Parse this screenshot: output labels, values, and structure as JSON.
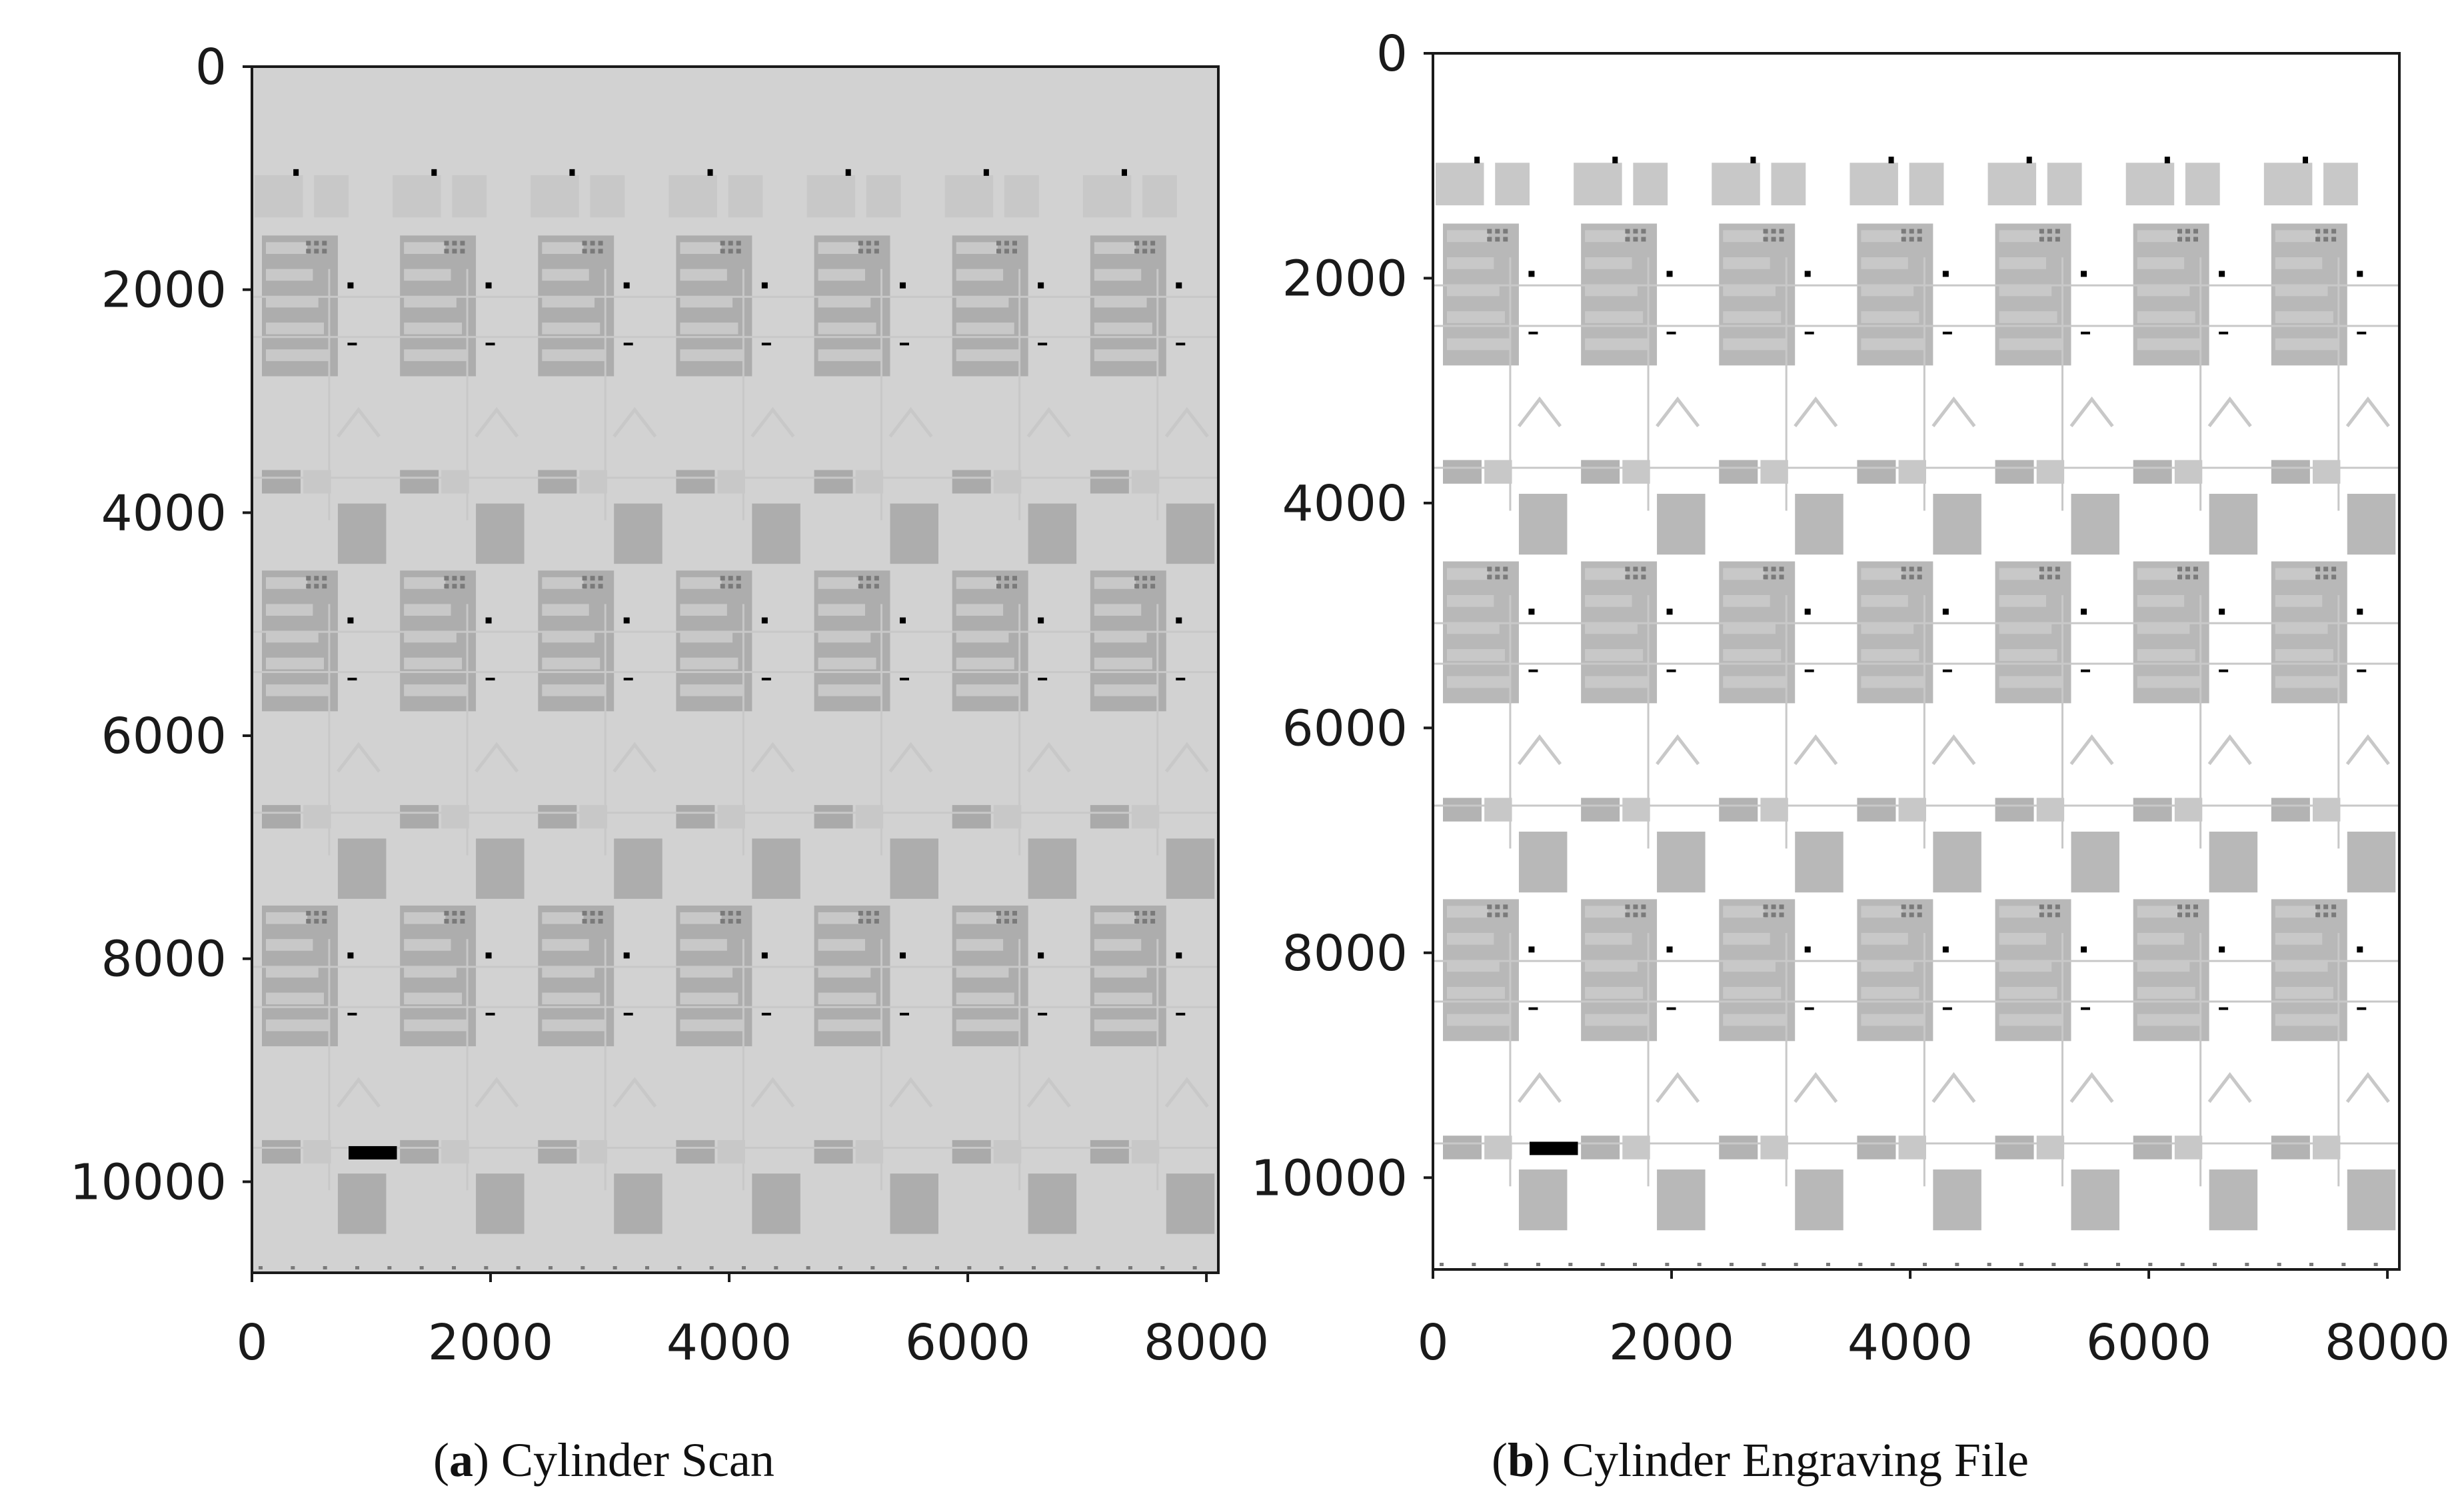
{
  "panels": [
    {
      "id": "a",
      "caption_letter": "a",
      "caption_text": "Cylinder Scan",
      "background": "#d2d2d2",
      "y_ticks": [
        "0",
        "2000",
        "4000",
        "6000",
        "8000",
        "10000"
      ],
      "x_ticks": [
        "0",
        "2000",
        "4000",
        "6000",
        "8000"
      ]
    },
    {
      "id": "b",
      "caption_letter": "b",
      "caption_text": "Cylinder Engraving File",
      "background": "#ffffff",
      "y_ticks": [
        "0",
        "2000",
        "4000",
        "6000",
        "8000",
        "10000"
      ],
      "x_ticks": [
        "0",
        "2000",
        "4000",
        "6000",
        "8000"
      ]
    }
  ],
  "colors": {
    "axis": "#1a1a1a",
    "pattern_light": "#c8c8c8",
    "pattern_mid": "#a0a0a0",
    "pattern_dark": "#7a7a7a",
    "mark": "#000000"
  }
}
